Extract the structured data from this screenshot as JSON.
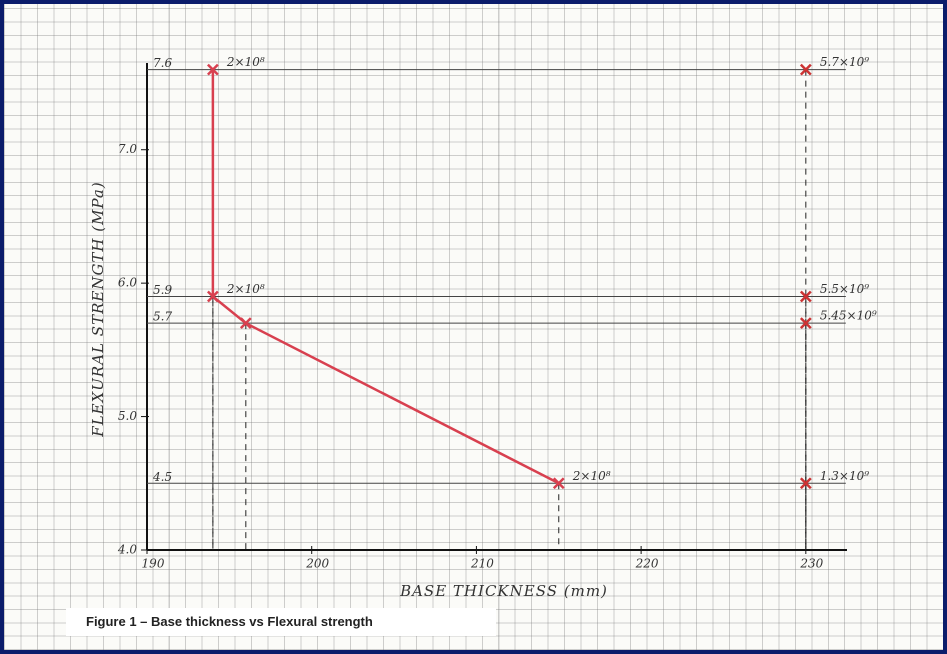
{
  "chart_data": {
    "type": "line",
    "caption": "Figure 1 – Base thickness vs Flexural strength",
    "x_label": "BASE THICKNESS (mm)",
    "y_label": "FLEXURAL STRENGTH (MPa)",
    "xlim": [
      190,
      232.5
    ],
    "ylim": [
      4,
      7.65
    ],
    "xticks": [
      190,
      200,
      210,
      220,
      230
    ],
    "yticks": [
      {
        "value": 4,
        "label": "4.0"
      },
      {
        "value": 5,
        "label": "5.0"
      },
      {
        "value": 6,
        "label": "6.0"
      },
      {
        "value": 7,
        "label": "7.0"
      }
    ],
    "reference_lines": [
      7.6,
      5.9,
      5.7,
      4.5
    ],
    "series": [
      {
        "color": "#d8404f",
        "line": true,
        "x": [
          194,
          194,
          196,
          215
        ],
        "values": [
          7.6,
          5.9,
          5.7,
          4.5
        ]
      },
      {
        "color": "#2a2a2a",
        "line": false,
        "x": [
          230,
          230,
          230,
          230
        ],
        "values": [
          7.6,
          5.9,
          5.7,
          4.5
        ]
      }
    ],
    "annotations": [
      {
        "x": 194,
        "y": 7.6,
        "text": "2×10⁸"
      },
      {
        "x": 194,
        "y": 5.9,
        "text": "2×10⁸"
      },
      {
        "x": 215,
        "y": 4.5,
        "text": "2×10⁸"
      },
      {
        "x": 230,
        "y": 7.6,
        "text": "5.7×10⁹"
      },
      {
        "x": 230,
        "y": 5.9,
        "text": "5.5×10⁹"
      },
      {
        "x": 230,
        "y": 5.7,
        "text": "5.45×10⁹"
      },
      {
        "x": 230,
        "y": 4.5,
        "text": "1.3×10⁹"
      }
    ]
  }
}
